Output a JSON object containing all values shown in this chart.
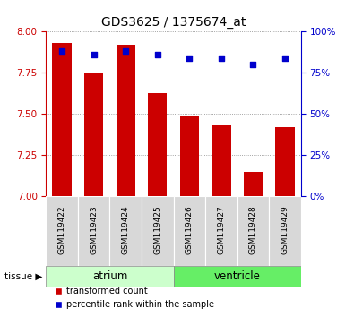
{
  "title": "GDS3625 / 1375674_at",
  "samples": [
    "GSM119422",
    "GSM119423",
    "GSM119424",
    "GSM119425",
    "GSM119426",
    "GSM119427",
    "GSM119428",
    "GSM119429"
  ],
  "transformed_count": [
    7.93,
    7.75,
    7.92,
    7.63,
    7.49,
    7.43,
    7.15,
    7.42
  ],
  "percentile_rank": [
    88,
    86,
    88,
    86,
    84,
    84,
    80,
    84
  ],
  "ylim_left": [
    7.0,
    8.0
  ],
  "ylim_right": [
    0,
    100
  ],
  "yticks_left": [
    7.0,
    7.25,
    7.5,
    7.75,
    8.0
  ],
  "yticks_right": [
    0,
    25,
    50,
    75,
    100
  ],
  "bar_color": "#cc0000",
  "dot_color": "#0000cc",
  "bar_width": 0.6,
  "atrium_samples": [
    0,
    1,
    2,
    3
  ],
  "ventricle_samples": [
    4,
    5,
    6,
    7
  ],
  "atrium_color": "#ccffcc",
  "ventricle_color": "#66ee66",
  "sample_box_color": "#d8d8d8",
  "tissue_label_atrium": "atrium",
  "tissue_label_ventricle": "ventricle",
  "legend_bar_label": "transformed count",
  "legend_dot_label": "percentile rank within the sample",
  "tissue_arrow_label": "tissue",
  "grid_color": "#888888",
  "tick_color_left": "#cc0000",
  "tick_color_right": "#0000cc",
  "background_color": "#ffffff",
  "plot_bg": "#ffffff",
  "title_fontsize": 10,
  "label_fontsize": 7.5,
  "sample_fontsize": 6.5
}
